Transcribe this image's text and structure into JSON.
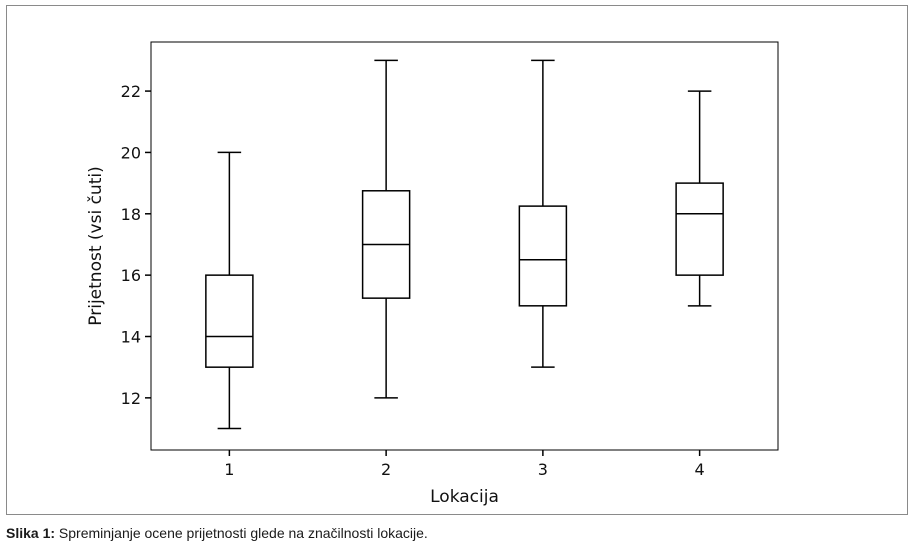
{
  "chart_data": {
    "type": "box",
    "xlabel": "Lokacija",
    "ylabel": "Prijetnost (vsi čuti)",
    "categories": [
      "1",
      "2",
      "3",
      "4"
    ],
    "boxes": [
      {
        "category": "1",
        "whisker_low": 11,
        "q1": 13,
        "median": 14,
        "q3": 16,
        "whisker_high": 20
      },
      {
        "category": "2",
        "whisker_low": 12,
        "q1": 15.25,
        "median": 17,
        "q3": 18.75,
        "whisker_high": 23
      },
      {
        "category": "3",
        "whisker_low": 13,
        "q1": 15,
        "median": 16.5,
        "q3": 18.25,
        "whisker_high": 23
      },
      {
        "category": "4",
        "whisker_low": 15,
        "q1": 16,
        "median": 18,
        "q3": 19,
        "whisker_high": 22
      }
    ],
    "yticks": [
      12,
      14,
      16,
      18,
      20,
      22
    ],
    "ylim": [
      10.3,
      23.6
    ],
    "grid": false,
    "legend": "none"
  },
  "caption": {
    "label": "Slika 1:",
    "text": " Spreminjanje ocene prijetnosti glede na značilnosti lokacije."
  }
}
